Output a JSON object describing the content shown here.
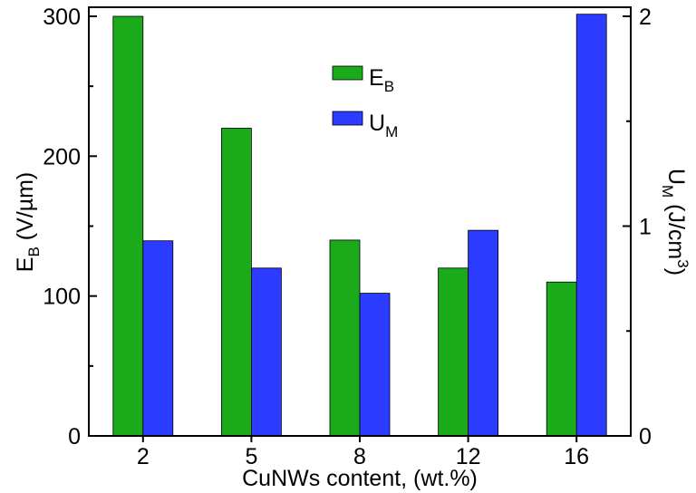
{
  "chart_data": {
    "type": "bar",
    "title": "",
    "xlabel": "CuNWs content, (wt.%)",
    "categories": [
      "2",
      "5",
      "8",
      "12",
      "16"
    ],
    "left_axis": {
      "label_main": "E",
      "label_sub": "B",
      "label_unit": " (V/µm)",
      "ylim": [
        0,
        300
      ],
      "ticks": [
        "0",
        "100",
        "200",
        "300"
      ]
    },
    "right_axis": {
      "label_main": "U",
      "label_sub": "M",
      "label_unit_pre": " (J/cm",
      "label_unit_sup": "3",
      "label_unit_post": ")",
      "ylim": [
        0,
        2
      ],
      "ticks": [
        "0",
        "1",
        "2"
      ]
    },
    "series": [
      {
        "name": "E",
        "name_sub": "B",
        "axis": "left",
        "color": "#1aaa1a",
        "values": [
          300,
          220,
          140,
          120,
          110
        ]
      },
      {
        "name": "U",
        "name_sub": "M",
        "axis": "right",
        "color": "#2b3bff",
        "values": [
          0.93,
          0.8,
          0.68,
          0.98,
          2.01
        ]
      }
    ],
    "legend_position": "top-center",
    "grid": false
  }
}
